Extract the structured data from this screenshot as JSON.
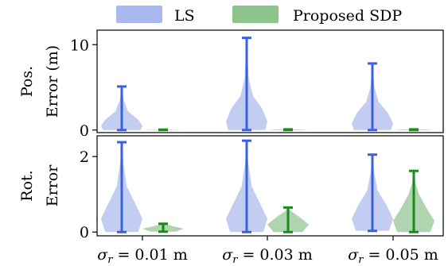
{
  "chart_data": {
    "type": "violin",
    "legend": {
      "placement": "top",
      "entries": [
        {
          "label": "LS",
          "color": "#a9b8ef"
        },
        {
          "label": "Proposed SDP",
          "color": "#8cc48c"
        }
      ]
    },
    "categories": [
      {
        "symbol": "σ",
        "sub": "r",
        "rest": " = 0.01 m"
      },
      {
        "symbol": "σ",
        "sub": "r",
        "rest": " = 0.03 m"
      },
      {
        "symbol": "σ",
        "sub": "r",
        "rest": " = 0.05 m"
      }
    ],
    "colors": {
      "ls_line": "#3b5fde",
      "ls_fill": "#aebcec",
      "sdp_line": "#1a8a1a",
      "sdp_fill": "#94c694"
    },
    "panels": [
      {
        "name": "position-error",
        "ylabel_lines": [
          "Pos.",
          "Error (m)"
        ],
        "ylim": [
          -0.3,
          11.7
        ],
        "yticks": [
          0,
          10
        ],
        "series": [
          {
            "name": "LS",
            "distributions": [
              {
                "min": 0,
                "max": 5.1,
                "peak": 0.5,
                "profile": [
                  [
                    0,
                    0.9
                  ],
                  [
                    0.5,
                    1
                  ],
                  [
                    1.2,
                    0.8
                  ],
                  [
                    2.2,
                    0.3
                  ],
                  [
                    3.5,
                    0.1
                  ],
                  [
                    5.1,
                    0
                  ]
                ]
              },
              {
                "min": 0,
                "max": 10.8,
                "peak": 1.0,
                "profile": [
                  [
                    0,
                    0.9
                  ],
                  [
                    1,
                    1
                  ],
                  [
                    2.5,
                    0.75
                  ],
                  [
                    4,
                    0.3
                  ],
                  [
                    6,
                    0.1
                  ],
                  [
                    10.8,
                    0
                  ]
                ]
              },
              {
                "min": 0,
                "max": 7.8,
                "peak": 0.8,
                "profile": [
                  [
                    0,
                    0.9
                  ],
                  [
                    0.8,
                    1
                  ],
                  [
                    2,
                    0.75
                  ],
                  [
                    3.3,
                    0.3
                  ],
                  [
                    5,
                    0.1
                  ],
                  [
                    7.8,
                    0
                  ]
                ]
              }
            ]
          },
          {
            "name": "Proposed SDP",
            "distributions": [
              {
                "min": 0,
                "max": 0.05,
                "peak": 0.02,
                "profile": [
                  [
                    0,
                    1
                  ],
                  [
                    0.05,
                    0.5
                  ]
                ]
              },
              {
                "min": 0,
                "max": 0.08,
                "peak": 0.03,
                "profile": [
                  [
                    0,
                    1
                  ],
                  [
                    0.08,
                    0.5
                  ]
                ]
              },
              {
                "min": 0,
                "max": 0.08,
                "peak": 0.03,
                "profile": [
                  [
                    0,
                    1
                  ],
                  [
                    0.08,
                    0.5
                  ]
                ]
              }
            ]
          }
        ]
      },
      {
        "name": "rotation-error",
        "ylabel_lines": [
          "Rot.",
          "Error"
        ],
        "ylim": [
          -0.1,
          2.55
        ],
        "yticks": [
          0,
          2
        ],
        "series": [
          {
            "name": "LS",
            "distributions": [
              {
                "min": 0,
                "max": 2.38,
                "peak": 0.35,
                "profile": [
                  [
                    0,
                    0.8
                  ],
                  [
                    0.35,
                    1
                  ],
                  [
                    0.7,
                    0.7
                  ],
                  [
                    1.2,
                    0.25
                  ],
                  [
                    1.8,
                    0.08
                  ],
                  [
                    2.38,
                    0
                  ]
                ]
              },
              {
                "min": 0,
                "max": 2.42,
                "peak": 0.35,
                "profile": [
                  [
                    0,
                    0.8
                  ],
                  [
                    0.35,
                    1
                  ],
                  [
                    0.7,
                    0.7
                  ],
                  [
                    1.2,
                    0.25
                  ],
                  [
                    1.8,
                    0.08
                  ],
                  [
                    2.42,
                    0
                  ]
                ]
              },
              {
                "min": 0.03,
                "max": 2.05,
                "peak": 0.35,
                "profile": [
                  [
                    0.03,
                    0.8
                  ],
                  [
                    0.35,
                    1
                  ],
                  [
                    0.7,
                    0.7
                  ],
                  [
                    1.1,
                    0.25
                  ],
                  [
                    1.6,
                    0.08
                  ],
                  [
                    2.05,
                    0
                  ]
                ]
              }
            ]
          },
          {
            "name": "Proposed SDP",
            "distributions": [
              {
                "min": 0.01,
                "max": 0.22,
                "peak": 0.09,
                "profile": [
                  [
                    0.01,
                    0.6
                  ],
                  [
                    0.09,
                    1
                  ],
                  [
                    0.15,
                    0.5
                  ],
                  [
                    0.22,
                    0.05
                  ]
                ]
              },
              {
                "min": 0,
                "max": 0.65,
                "peak": 0.2,
                "profile": [
                  [
                    0,
                    0.7
                  ],
                  [
                    0.2,
                    1
                  ],
                  [
                    0.4,
                    0.55
                  ],
                  [
                    0.55,
                    0.15
                  ],
                  [
                    0.65,
                    0
                  ]
                ]
              },
              {
                "min": 0,
                "max": 1.62,
                "peak": 0.3,
                "profile": [
                  [
                    0,
                    0.8
                  ],
                  [
                    0.3,
                    1
                  ],
                  [
                    0.6,
                    0.65
                  ],
                  [
                    1,
                    0.25
                  ],
                  [
                    1.3,
                    0.08
                  ],
                  [
                    1.62,
                    0
                  ]
                ]
              }
            ]
          }
        ]
      }
    ]
  }
}
